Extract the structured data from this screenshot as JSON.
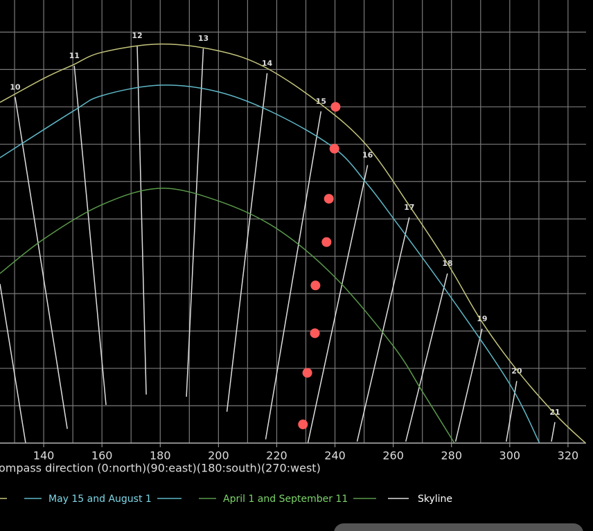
{
  "chart_data": {
    "type": "line",
    "x_label": "ompass direction (0:north)(90:east)(180:south)(270:west)",
    "xlim": [
      125,
      326.2
    ],
    "ylim": [
      0,
      59.3
    ],
    "xticks": [
      140,
      160,
      180,
      200,
      220,
      240,
      260,
      280,
      300,
      320
    ],
    "yticks": [
      0,
      5,
      10,
      15,
      20,
      25,
      30,
      35,
      40,
      45,
      50,
      55
    ],
    "grid": true,
    "series": [
      {
        "color": "#c4c47c",
        "x": [
          125,
          140,
          150,
          160,
          180,
          200,
          216,
          235,
          251,
          266,
          279,
          290,
          302,
          316,
          326
        ],
        "values": [
          45.6,
          48.8,
          50.6,
          52.3,
          53.4,
          52.5,
          50.3,
          45.4,
          39.8,
          31.5,
          23.8,
          16.5,
          10.0,
          3.7,
          0
        ]
      },
      {
        "name": "May 15 and August 1",
        "color": "#5fb8c8",
        "x": [
          125,
          150,
          160,
          180,
          200,
          220,
          240,
          251,
          260,
          280,
          300,
          310.2
        ],
        "values": [
          38.2,
          44.4,
          46.5,
          47.9,
          47.0,
          44.0,
          39.4,
          34.7,
          30.1,
          19.4,
          7.9,
          0
        ]
      },
      {
        "name": "April 1 and September 11",
        "color": "#5a9a4a",
        "x": [
          125,
          140,
          160,
          180,
          200,
          220,
          240,
          260,
          270,
          281
        ],
        "values": [
          22.7,
          27.3,
          31.9,
          34.1,
          32.4,
          28.7,
          22.2,
          13.0,
          6.9,
          0
        ]
      },
      {
        "name": "Skyline",
        "color": "#ff5a5a",
        "mode": "markers",
        "x": [
          240.2,
          239.8,
          237.9,
          237.1,
          233.3,
          233.1,
          230.5,
          229.0
        ],
        "values": [
          45.0,
          39.4,
          32.7,
          26.9,
          21.1,
          14.7,
          9.4,
          2.5
        ]
      }
    ],
    "hour_lines": [
      {
        "x": [
          125,
          133.8
        ],
        "y": [
          21.3,
          0
        ]
      },
      {
        "label": "10",
        "x": [
          130.2,
          148.1
        ],
        "y": [
          46.3,
          1.9
        ]
      },
      {
        "label": "11",
        "x": [
          150.5,
          161.4
        ],
        "y": [
          50.5,
          5.1
        ]
      },
      {
        "label": "12",
        "x": [
          172.1,
          175.2
        ],
        "y": [
          53.2,
          6.5
        ]
      },
      {
        "label": "13",
        "x": [
          194.8,
          189.0
        ],
        "y": [
          52.8,
          6.2
        ]
      },
      {
        "label": "14",
        "x": [
          216.7,
          202.9
        ],
        "y": [
          49.5,
          4.2
        ]
      },
      {
        "label": "15",
        "x": [
          235.2,
          216.2
        ],
        "y": [
          44.4,
          0.5
        ]
      },
      {
        "label": "16",
        "x": [
          251.2,
          230.7
        ],
        "y": [
          37.2,
          0
        ]
      },
      {
        "label": "17",
        "x": [
          265.5,
          247.6
        ],
        "y": [
          30.2,
          0.2
        ]
      },
      {
        "label": "18",
        "x": [
          278.6,
          264.3
        ],
        "y": [
          22.7,
          0.2
        ]
      },
      {
        "label": "19",
        "x": [
          290.5,
          281.4
        ],
        "y": [
          15.3,
          0.2
        ]
      },
      {
        "label": "20",
        "x": [
          302.4,
          298.8
        ],
        "y": [
          8.3,
          0.2
        ]
      },
      {
        "label": "21",
        "x": [
          315.5,
          314.3
        ],
        "y": [
          2.8,
          0.2
        ]
      }
    ]
  }
}
